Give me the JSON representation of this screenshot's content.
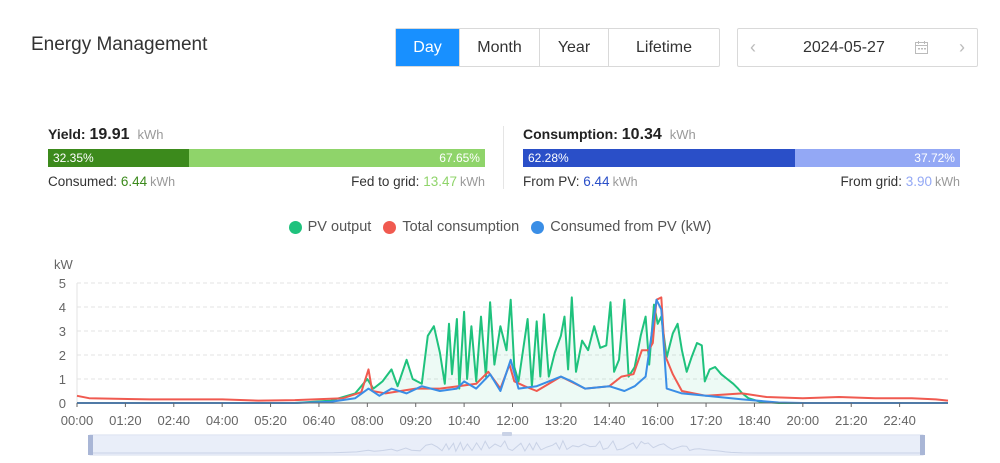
{
  "header": {
    "title": "Energy Management"
  },
  "period_tabs": [
    {
      "label": "Day",
      "active": true
    },
    {
      "label": "Month",
      "active": false
    },
    {
      "label": "Year",
      "active": false
    },
    {
      "label": "Lifetime",
      "active": false
    }
  ],
  "date_picker": {
    "value": "2024-05-27",
    "prev_glyph": "‹",
    "next_glyph": "›"
  },
  "yield": {
    "label": "Yield:",
    "value": "19.91",
    "unit": "kWh",
    "left_pct": "32.35%",
    "right_pct": "67.65%",
    "left_fraction": 0.3235,
    "consumed_label": "Consumed:",
    "consumed_value": "6.44",
    "consumed_unit": "kWh",
    "fed_label": "Fed to grid:",
    "fed_value": "13.47",
    "fed_unit": "kWh",
    "colors": {
      "dark": "#3c8a1c",
      "light": "#8fd46a"
    }
  },
  "consumption": {
    "label": "Consumption:",
    "value": "10.34",
    "unit": "kWh",
    "left_pct": "62.28%",
    "right_pct": "37.72%",
    "left_fraction": 0.6228,
    "from_pv_label": "From PV:",
    "from_pv_value": "6.44",
    "from_pv_unit": "kWh",
    "from_grid_label": "From grid:",
    "from_grid_value": "3.90",
    "from_grid_unit": "kWh",
    "colors": {
      "dark": "#2a4fc8",
      "light": "#93a8f5"
    }
  },
  "legend": [
    {
      "label": "PV output",
      "color": "#1fc27d"
    },
    {
      "label": "Total consumption",
      "color": "#f05a50"
    },
    {
      "label": "Consumed from PV (kW)",
      "color": "#3a8ee6"
    }
  ],
  "chart_data": {
    "type": "line",
    "ylabel": "kW",
    "ylim": [
      0,
      5
    ],
    "yticks": [
      0,
      1,
      2,
      3,
      4,
      5
    ],
    "xlim": [
      0,
      1440
    ],
    "xtick_labels": [
      "00:00",
      "01:20",
      "02:40",
      "04:00",
      "05:20",
      "06:40",
      "08:00",
      "09:20",
      "10:40",
      "12:00",
      "13:20",
      "14:40",
      "16:00",
      "17:20",
      "18:40",
      "20:00",
      "21:20",
      "22:40"
    ],
    "grid": true,
    "x_unit": "minutes since 00:00",
    "series": [
      {
        "name": "PV output",
        "color": "#1fc27d",
        "area": true,
        "points": [
          [
            0,
            0
          ],
          [
            360,
            0
          ],
          [
            420,
            0.1
          ],
          [
            460,
            0.4
          ],
          [
            480,
            1.0
          ],
          [
            490,
            0.6
          ],
          [
            505,
            0.9
          ],
          [
            520,
            1.4
          ],
          [
            530,
            0.7
          ],
          [
            545,
            1.8
          ],
          [
            555,
            1.0
          ],
          [
            570,
            0.8
          ],
          [
            580,
            2.8
          ],
          [
            590,
            3.2
          ],
          [
            600,
            2.1
          ],
          [
            608,
            0.8
          ],
          [
            615,
            3.3
          ],
          [
            620,
            1.2
          ],
          [
            628,
            3.5
          ],
          [
            632,
            0.6
          ],
          [
            640,
            3.8
          ],
          [
            645,
            1.0
          ],
          [
            652,
            3.2
          ],
          [
            660,
            0.9
          ],
          [
            668,
            3.6
          ],
          [
            676,
            1.1
          ],
          [
            683,
            4.2
          ],
          [
            690,
            1.6
          ],
          [
            700,
            3.2
          ],
          [
            710,
            2.2
          ],
          [
            717,
            4.3
          ],
          [
            723,
            1.5
          ],
          [
            730,
            0.9
          ],
          [
            745,
            3.5
          ],
          [
            752,
            0.7
          ],
          [
            760,
            3.4
          ],
          [
            766,
            1.1
          ],
          [
            772,
            3.7
          ],
          [
            780,
            1.1
          ],
          [
            790,
            2.1
          ],
          [
            800,
            2.8
          ],
          [
            806,
            3.6
          ],
          [
            812,
            1.4
          ],
          [
            818,
            4.4
          ],
          [
            825,
            1.3
          ],
          [
            835,
            2.6
          ],
          [
            845,
            2.2
          ],
          [
            855,
            3.2
          ],
          [
            865,
            2.3
          ],
          [
            875,
            2.4
          ],
          [
            882,
            4.2
          ],
          [
            888,
            1.3
          ],
          [
            896,
            1.8
          ],
          [
            905,
            4.3
          ],
          [
            912,
            1.1
          ],
          [
            922,
            1.5
          ],
          [
            932,
            2.8
          ],
          [
            940,
            3.6
          ],
          [
            946,
            1.6
          ],
          [
            954,
            4.1
          ],
          [
            960,
            3.3
          ],
          [
            966,
            3.6
          ],
          [
            975,
            1.9
          ],
          [
            985,
            2.9
          ],
          [
            993,
            3.3
          ],
          [
            1000,
            2.2
          ],
          [
            1008,
            1.3
          ],
          [
            1016,
            1.9
          ],
          [
            1025,
            2.5
          ],
          [
            1033,
            2.4
          ],
          [
            1038,
            0.9
          ],
          [
            1046,
            1.4
          ],
          [
            1055,
            1.5
          ],
          [
            1065,
            1.2
          ],
          [
            1075,
            1.0
          ],
          [
            1085,
            0.8
          ],
          [
            1093,
            0.6
          ],
          [
            1100,
            0.4
          ],
          [
            1110,
            0.2
          ],
          [
            1130,
            0.05
          ],
          [
            1160,
            0
          ],
          [
            1440,
            0
          ]
        ]
      },
      {
        "name": "Total consumption",
        "color": "#f05a50",
        "area": false,
        "points": [
          [
            0,
            0.3
          ],
          [
            20,
            0.2
          ],
          [
            120,
            0.15
          ],
          [
            240,
            0.15
          ],
          [
            300,
            0.1
          ],
          [
            360,
            0.12
          ],
          [
            440,
            0.2
          ],
          [
            470,
            0.45
          ],
          [
            482,
            1.4
          ],
          [
            488,
            0.5
          ],
          [
            510,
            0.4
          ],
          [
            560,
            0.6
          ],
          [
            600,
            0.6
          ],
          [
            630,
            0.7
          ],
          [
            660,
            0.8
          ],
          [
            680,
            1.3
          ],
          [
            700,
            0.6
          ],
          [
            715,
            1.6
          ],
          [
            723,
            0.9
          ],
          [
            740,
            0.7
          ],
          [
            760,
            0.5
          ],
          [
            800,
            1.1
          ],
          [
            840,
            0.6
          ],
          [
            880,
            0.7
          ],
          [
            900,
            1.1
          ],
          [
            920,
            1.2
          ],
          [
            934,
            2.2
          ],
          [
            945,
            2.2
          ],
          [
            952,
            2.5
          ],
          [
            958,
            4.3
          ],
          [
            966,
            4.4
          ],
          [
            972,
            2.0
          ],
          [
            985,
            1.2
          ],
          [
            1000,
            0.5
          ],
          [
            1040,
            0.3
          ],
          [
            1100,
            0.4
          ],
          [
            1140,
            0.25
          ],
          [
            1200,
            0.2
          ],
          [
            1260,
            0.25
          ],
          [
            1320,
            0.2
          ],
          [
            1380,
            0.2
          ],
          [
            1420,
            0.15
          ],
          [
            1440,
            0.1
          ]
        ]
      },
      {
        "name": "Consumed from PV (kW)",
        "color": "#3a8ee6",
        "area": false,
        "points": [
          [
            0,
            0
          ],
          [
            360,
            0
          ],
          [
            420,
            0.05
          ],
          [
            460,
            0.2
          ],
          [
            482,
            0.6
          ],
          [
            500,
            0.3
          ],
          [
            520,
            0.6
          ],
          [
            545,
            0.4
          ],
          [
            570,
            0.7
          ],
          [
            600,
            0.5
          ],
          [
            628,
            0.6
          ],
          [
            640,
            0.9
          ],
          [
            660,
            0.6
          ],
          [
            683,
            1.2
          ],
          [
            700,
            0.5
          ],
          [
            717,
            1.8
          ],
          [
            730,
            0.6
          ],
          [
            760,
            0.7
          ],
          [
            800,
            1.1
          ],
          [
            818,
            0.9
          ],
          [
            840,
            0.6
          ],
          [
            880,
            0.7
          ],
          [
            905,
            0.5
          ],
          [
            922,
            0.7
          ],
          [
            940,
            1.1
          ],
          [
            958,
            4.3
          ],
          [
            966,
            3.9
          ],
          [
            975,
            0.6
          ],
          [
            1000,
            0.4
          ],
          [
            1040,
            0.3
          ],
          [
            1100,
            0.15
          ],
          [
            1160,
            0.02
          ],
          [
            1200,
            0
          ],
          [
            1440,
            0
          ]
        ]
      }
    ]
  }
}
